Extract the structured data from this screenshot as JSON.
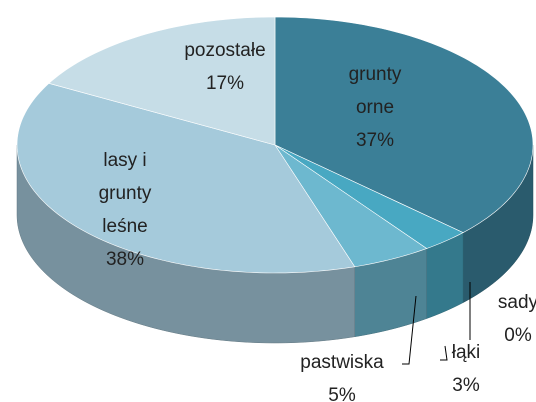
{
  "chart_data": {
    "type": "pie",
    "categories": [
      "grunty orne",
      "sady",
      "łąki",
      "pastwiska",
      "lasy i grunty leśne",
      "pozostałe"
    ],
    "values": [
      37,
      0,
      3,
      5,
      38,
      17
    ],
    "value_labels": [
      "37%",
      "0%",
      "3%",
      "5%",
      "38%",
      "17%"
    ],
    "colors": [
      "#3b7f97",
      "#3a98b2",
      "#48a8c2",
      "#6db8cf",
      "#a5cadb",
      "#c6dde7"
    ]
  }
}
